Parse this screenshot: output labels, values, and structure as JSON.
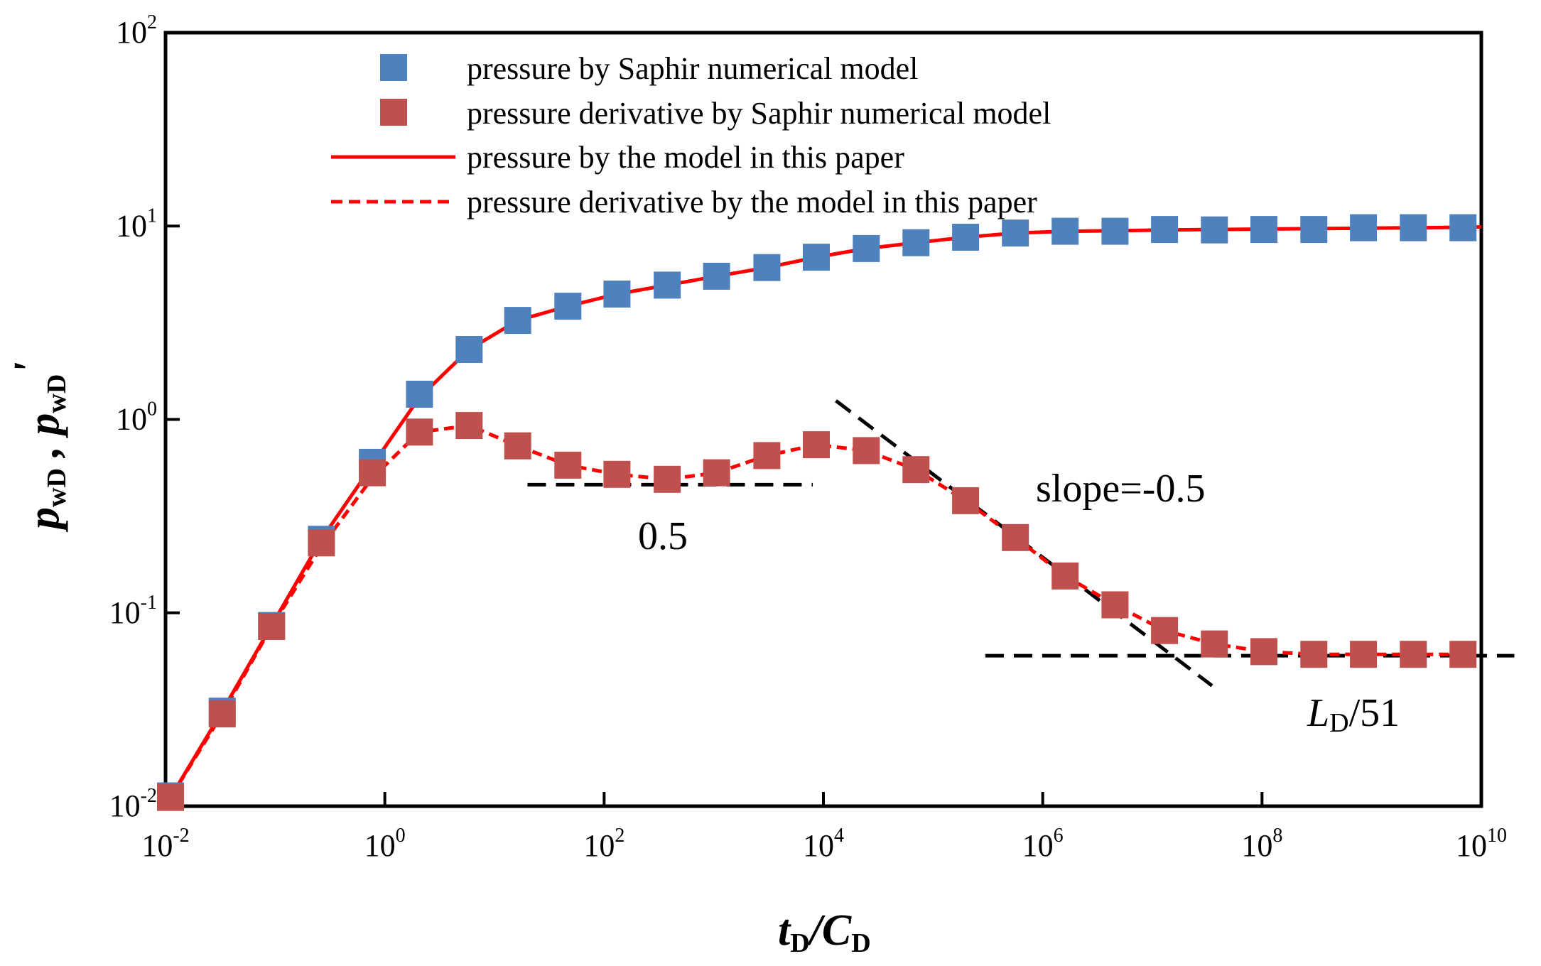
{
  "chart_data": {
    "type": "scatter",
    "xscale": "log",
    "yscale": "log",
    "xlim": [
      0.01,
      10000000000
    ],
    "ylim": [
      0.01,
      100
    ],
    "grid": false,
    "legend_position": "top-left",
    "xlabel": {
      "main": "t",
      "sub1": "D",
      "slash": "/C",
      "sub2": "D"
    },
    "ylabel": {
      "p1": "p",
      "sub1": "wD",
      "sep": " , ",
      "p2": "p",
      "sub2": "wD",
      "prime": "'"
    },
    "xticks": [
      {
        "base": "10",
        "exp": "-2",
        "value": 0.01
      },
      {
        "base": "10",
        "exp": "0",
        "value": 1
      },
      {
        "base": "10",
        "exp": "2",
        "value": 100
      },
      {
        "base": "10",
        "exp": "4",
        "value": 10000
      },
      {
        "base": "10",
        "exp": "6",
        "value": 1000000
      },
      {
        "base": "10",
        "exp": "8",
        "value": 100000000
      },
      {
        "base": "10",
        "exp": "10",
        "value": 10000000000
      }
    ],
    "yticks": [
      {
        "base": "10",
        "exp": "-2",
        "value": 0.01
      },
      {
        "base": "10",
        "exp": "-1",
        "value": 0.1
      },
      {
        "base": "10",
        "exp": "0",
        "value": 1
      },
      {
        "base": "10",
        "exp": "1",
        "value": 10
      },
      {
        "base": "10",
        "exp": "2",
        "value": 100
      }
    ],
    "legend": [
      {
        "label": "pressure by Saphir numerical model",
        "style": "square",
        "color": "#4f81bd"
      },
      {
        "label": "pressure derivative by Saphir numerical model",
        "style": "square",
        "color": "#c0504d"
      },
      {
        "label": "pressure by the model in this paper",
        "style": "solid",
        "color": "#ff0000"
      },
      {
        "label": "pressure derivative by the model in this paper",
        "style": "dashed",
        "color": "#ff0000"
      }
    ],
    "series": [
      {
        "name": "pressure by Saphir numerical model",
        "kind": "markers",
        "color": "#4f81bd",
        "x": [
          0.0111,
          0.0329,
          0.0927,
          0.264,
          0.77,
          2.07,
          5.87,
          16.3,
          46.7,
          131,
          376,
          1060,
          3050,
          8620,
          24600,
          69900,
          198000,
          563000,
          1600000,
          4560000,
          12900000,
          36800000,
          104000000,
          297000000,
          841000000,
          2400000000,
          6810000000
        ],
        "y": [
          0.0113,
          0.031,
          0.086,
          0.24,
          0.6,
          1.35,
          2.3,
          3.25,
          3.85,
          4.45,
          4.95,
          5.5,
          6.1,
          6.9,
          7.65,
          8.2,
          8.75,
          9.2,
          9.4,
          9.4,
          9.6,
          9.55,
          9.6,
          9.6,
          9.8,
          9.8,
          9.8
        ]
      },
      {
        "name": "pressure derivative by Saphir numerical model",
        "kind": "markers",
        "color": "#c0504d",
        "x": [
          0.0111,
          0.0329,
          0.0927,
          0.264,
          0.77,
          2.07,
          5.87,
          16.3,
          46.7,
          131,
          376,
          1060,
          3050,
          8620,
          24600,
          69900,
          198000,
          563000,
          1600000,
          4560000,
          12900000,
          36800000,
          104000000,
          297000000,
          841000000,
          2400000000,
          6810000000
        ],
        "y": [
          0.0111,
          0.03,
          0.085,
          0.23,
          0.53,
          0.86,
          0.93,
          0.73,
          0.58,
          0.52,
          0.49,
          0.53,
          0.65,
          0.74,
          0.69,
          0.55,
          0.38,
          0.245,
          0.155,
          0.11,
          0.081,
          0.069,
          0.063,
          0.061,
          0.061,
          0.061,
          0.061
        ]
      },
      {
        "name": "pressure by the model in this paper",
        "kind": "solid-line",
        "color": "#ff0000",
        "x": [
          0.0111,
          0.0329,
          0.0927,
          0.264,
          0.77,
          2.07,
          5.87,
          16.3,
          46.7,
          131,
          376,
          1060,
          3050,
          8620,
          24600,
          69900,
          198000,
          563000,
          1600000,
          4560000,
          12900000,
          36800000,
          104000000,
          297000000,
          841000000,
          2400000000,
          6810000000,
          10000000000
        ],
        "y": [
          0.0111,
          0.031,
          0.086,
          0.24,
          0.58,
          1.3,
          2.3,
          3.25,
          3.85,
          4.45,
          4.95,
          5.5,
          6.1,
          6.9,
          7.65,
          8.2,
          8.75,
          9.2,
          9.4,
          9.45,
          9.55,
          9.6,
          9.65,
          9.7,
          9.75,
          9.8,
          9.85,
          9.9
        ]
      },
      {
        "name": "pressure derivative by the model in this paper",
        "kind": "dashed-line",
        "color": "#ff0000",
        "x": [
          0.0111,
          0.0329,
          0.0927,
          0.264,
          0.77,
          2.07,
          5.87,
          16.3,
          46.7,
          131,
          376,
          1060,
          3050,
          8620,
          24600,
          69900,
          198000,
          563000,
          1600000,
          4560000,
          12900000,
          36800000,
          104000000,
          297000000,
          841000000,
          2400000000,
          6810000000
        ],
        "y": [
          0.0111,
          0.03,
          0.085,
          0.22,
          0.5,
          0.86,
          0.93,
          0.73,
          0.58,
          0.52,
          0.49,
          0.53,
          0.65,
          0.74,
          0.69,
          0.55,
          0.38,
          0.245,
          0.155,
          0.11,
          0.081,
          0.069,
          0.063,
          0.061,
          0.061,
          0.061,
          0.061
        ]
      }
    ],
    "reference_lines": [
      {
        "name": "half-plateau-line",
        "x": [
          20,
          8000
        ],
        "y": [
          0.46,
          0.46
        ],
        "color": "#000000"
      },
      {
        "name": "slope-line",
        "x": [
          13000,
          35000000
        ],
        "y": [
          1.25,
          0.042
        ],
        "color": "#000000"
      },
      {
        "name": "ld-plateau-line",
        "x": [
          300000,
          20000000000
        ],
        "y": [
          0.06,
          0.06
        ],
        "color": "#000000"
      }
    ],
    "annotations": {
      "half": "0.5",
      "slope": "slope=-0.5",
      "ld_italic": "L",
      "ld_sub": "D",
      "ld_rest": "/51"
    }
  }
}
